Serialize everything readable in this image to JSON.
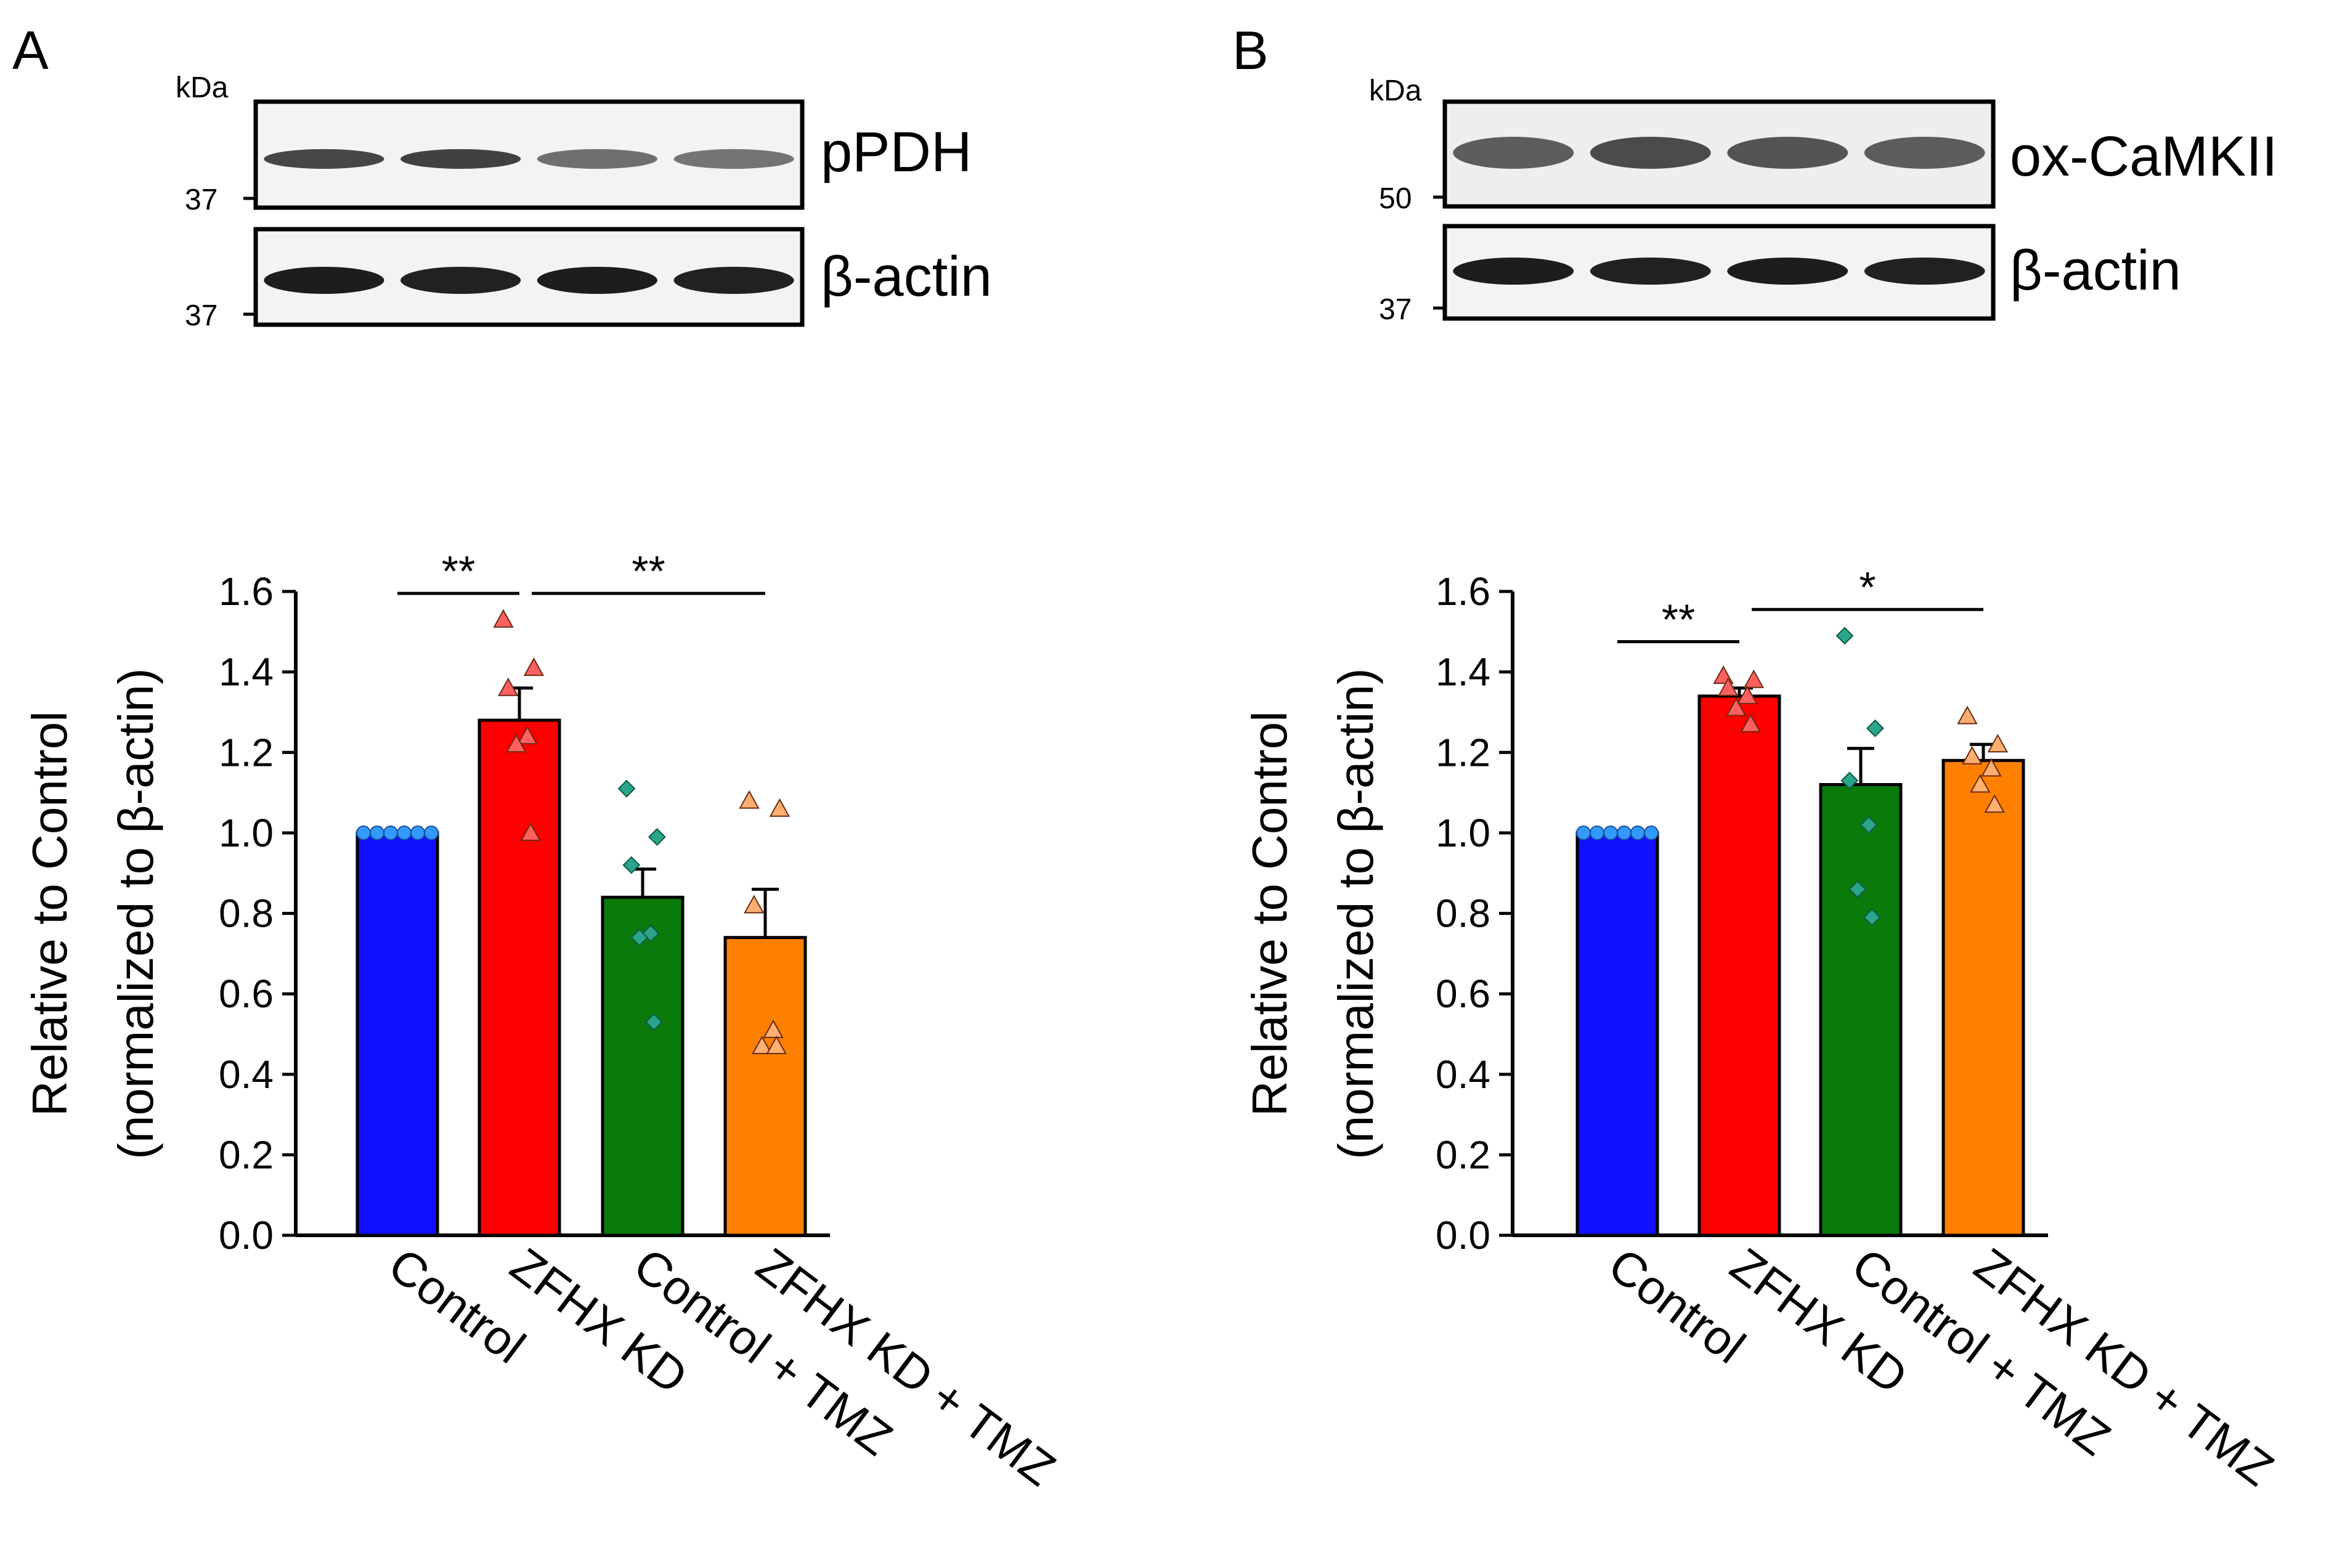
{
  "panels": [
    {
      "letter": "A",
      "blot": {
        "kda_label": "kDa",
        "rows": [
          {
            "label": "pPDH",
            "marker": "37",
            "band_intensity": [
              0.8,
              0.82,
              0.62,
              0.6
            ]
          },
          {
            "label": "β-actin",
            "marker": "37",
            "band_intensity": [
              0.98,
              0.96,
              0.98,
              0.96
            ]
          }
        ]
      }
    },
    {
      "letter": "B",
      "blot": {
        "kda_label": "kDa",
        "rows": [
          {
            "label": "ox-CaMKII",
            "marker": "50",
            "band_intensity": [
              0.7,
              0.78,
              0.74,
              0.7
            ]
          },
          {
            "label": "β-actin",
            "marker": "37",
            "band_intensity": [
              0.98,
              0.96,
              0.98,
              0.96
            ]
          }
        ]
      }
    }
  ],
  "chart_data": [
    {
      "type": "bar",
      "panel": "A",
      "categories": [
        "Control",
        "ZFHX KD",
        "Control + TMZ",
        "ZFHX KD + TMZ"
      ],
      "values": [
        1.0,
        1.28,
        0.84,
        0.74
      ],
      "errors": [
        0.0,
        0.08,
        0.07,
        0.12
      ],
      "colors": [
        "#1010ff",
        "#ff0000",
        "#0a7a0a",
        "#ff8000"
      ],
      "points": [
        [
          1.0,
          1.0,
          1.0,
          1.0,
          1.0,
          1.0
        ],
        [
          1.53,
          1.41,
          1.36,
          1.24,
          1.22,
          1.0
        ],
        [
          1.11,
          0.99,
          0.92,
          0.75,
          0.74,
          0.53
        ],
        [
          1.08,
          1.06,
          0.82,
          0.51,
          0.47,
          0.47
        ]
      ],
      "point_colors": [
        "#3399ff",
        "#ff6060",
        "#2aa58a",
        "#ffb070"
      ],
      "point_shapes": [
        "circle",
        "triangle",
        "diamond",
        "triangle"
      ],
      "ylabel_line1": "Relative to Control",
      "ylabel_line2": "(normalized to β-actin)",
      "ylim": [
        0.0,
        1.6
      ],
      "yticks": [
        "0.0",
        "0.2",
        "0.4",
        "0.6",
        "0.8",
        "1.0",
        "1.2",
        "1.4",
        "1.6"
      ],
      "significance": [
        {
          "from": 0,
          "to": 1,
          "label": "**",
          "y": 1.58
        },
        {
          "from": 1,
          "to": 3,
          "label": "**",
          "y": 1.58
        }
      ]
    },
    {
      "type": "bar",
      "panel": "B",
      "categories": [
        "Control",
        "ZFHX KD",
        "Control + TMZ",
        "ZFHX KD + TMZ"
      ],
      "values": [
        1.0,
        1.34,
        1.12,
        1.18
      ],
      "errors": [
        0.0,
        0.02,
        0.09,
        0.04
      ],
      "colors": [
        "#1010ff",
        "#ff0000",
        "#0a7a0a",
        "#ff8000"
      ],
      "points": [
        [
          1.0,
          1.0,
          1.0,
          1.0,
          1.0,
          1.0
        ],
        [
          1.39,
          1.38,
          1.36,
          1.34,
          1.31,
          1.27
        ],
        [
          1.49,
          1.26,
          1.13,
          1.02,
          0.86,
          0.79
        ],
        [
          1.29,
          1.22,
          1.19,
          1.16,
          1.12,
          1.07
        ]
      ],
      "point_colors": [
        "#3399ff",
        "#ff6060",
        "#2aa58a",
        "#ffb070"
      ],
      "point_shapes": [
        "circle",
        "triangle",
        "diamond",
        "triangle"
      ],
      "ylabel_line1": "Relative to Control",
      "ylabel_line2": "(normalized to β-actin)",
      "ylim": [
        0.0,
        1.6
      ],
      "yticks": [
        "0.0",
        "0.2",
        "0.4",
        "0.6",
        "0.8",
        "1.0",
        "1.2",
        "1.4",
        "1.6"
      ],
      "significance": [
        {
          "from": 0,
          "to": 1,
          "label": "**",
          "y": 1.46
        },
        {
          "from": 1,
          "to": 3,
          "label": "*",
          "y": 1.54
        }
      ]
    }
  ]
}
